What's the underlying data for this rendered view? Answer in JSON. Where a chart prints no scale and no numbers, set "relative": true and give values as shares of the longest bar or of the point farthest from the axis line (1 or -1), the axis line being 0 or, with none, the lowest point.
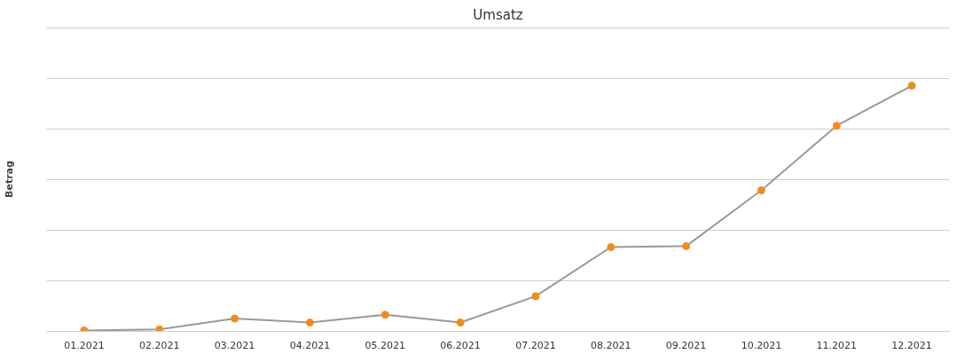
{
  "chart_data": {
    "type": "line",
    "title": "Umsatz",
    "ylabel": "Betrag",
    "relative": true,
    "categories": [
      "01.2021",
      "02.2021",
      "03.2021",
      "04.2021",
      "05.2021",
      "06.2021",
      "07.2021",
      "08.2021",
      "09.2021",
      "10.2021",
      "11.2021",
      "12.2021"
    ],
    "series": [
      {
        "color": "#999999",
        "colors": [
          "#f28c1e",
          "#f28c1e",
          "#f28c1e",
          "#f28c1e",
          "#f28c1e",
          "#f28c1e",
          "#f28c1e",
          "#f28c1e",
          "#f28c1e",
          "#f28c1e",
          "#f28c1e",
          "#f28c1e"
        ],
        "values": [
          0.004,
          0.008,
          0.052,
          0.036,
          0.068,
          0.036,
          0.143,
          0.343,
          0.347,
          0.574,
          0.837,
          1
        ]
      }
    ],
    "grid": "y",
    "marker": "circle",
    "line_style": "solid"
  }
}
